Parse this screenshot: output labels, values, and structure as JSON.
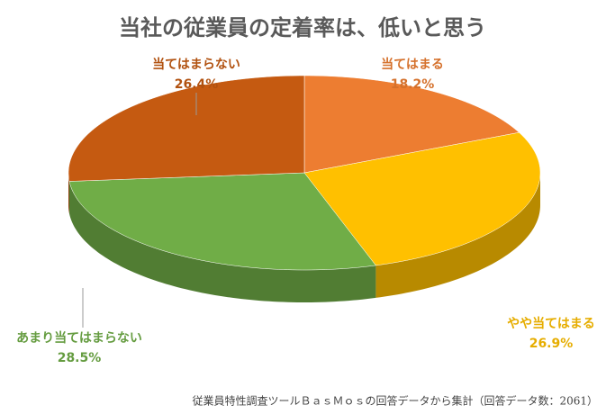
{
  "chart_data": {
    "type": "pie",
    "title": "当社の従業員の定着率は、低いと思う",
    "categories": [
      "当てはまる",
      "やや当てはまる",
      "あまり当てはまらない",
      "当てはまらない"
    ],
    "values": [
      18.2,
      26.9,
      28.5,
      26.4
    ],
    "value_labels": [
      "18.2%",
      "26.9%",
      "28.5%",
      "26.4%"
    ],
    "colors": [
      "#ED7D31",
      "#FFC000",
      "#70AD47",
      "#C55A11"
    ],
    "footnote": "従業員特性調査ツールＢａｓＭｏｓの回答データから集計（回答データ数：2061）"
  }
}
